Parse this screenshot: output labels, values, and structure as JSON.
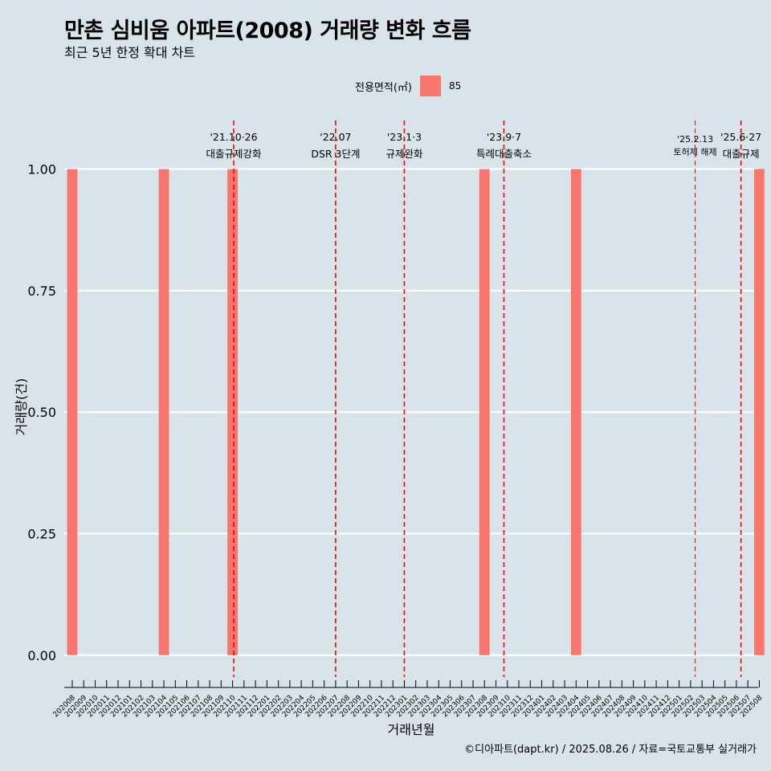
{
  "chart_data": {
    "type": "bar",
    "title": "만촌 심비움 아파트(2008) 거래량 변화 흐름",
    "subtitle": "최근 5년 한정 확대 차트",
    "xlabel": "거래년월",
    "ylabel": "거래량(건)",
    "ylim": [
      -0.045,
      1.1
    ],
    "yticks": [
      "0.00",
      "0.25",
      "0.50",
      "0.75",
      "1.00"
    ],
    "ytick_values": [
      0,
      0.25,
      0.5,
      0.75,
      1.0
    ],
    "legend": {
      "title": "전용면적(㎡)",
      "entries": [
        {
          "label": "85",
          "color": "#f8766d"
        }
      ]
    },
    "categories": [
      "202008",
      "202009",
      "202010",
      "202011",
      "202012",
      "202101",
      "202102",
      "202103",
      "202104",
      "202105",
      "202106",
      "202107",
      "202108",
      "202109",
      "202110",
      "202111",
      "202112",
      "202201",
      "202202",
      "202203",
      "202204",
      "202205",
      "202206",
      "202207",
      "202208",
      "202209",
      "202210",
      "202211",
      "202212",
      "202301",
      "202302",
      "202303",
      "202304",
      "202305",
      "202306",
      "202307",
      "202308",
      "202309",
      "202310",
      "202311",
      "202312",
      "202401",
      "202402",
      "202403",
      "202404",
      "202405",
      "202406",
      "202407",
      "202408",
      "202409",
      "202410",
      "202411",
      "202412",
      "202501",
      "202502",
      "202503",
      "202504",
      "202505",
      "202506",
      "202507",
      "202508"
    ],
    "series": [
      {
        "name": "85",
        "color": "#f8766d",
        "points": [
          {
            "x": "202008",
            "y": 1
          },
          {
            "x": "202104",
            "y": 1
          },
          {
            "x": "202110",
            "y": 1
          },
          {
            "x": "202308",
            "y": 1
          },
          {
            "x": "202404",
            "y": 1
          },
          {
            "x": "202508",
            "y": 1
          }
        ]
      }
    ],
    "annotations": [
      {
        "x": 14.1,
        "date": "'21.10·26",
        "label": "대출규제강화",
        "size": "normal"
      },
      {
        "x": 23,
        "date": "'22.07",
        "label": "DSR 3단계",
        "size": "normal"
      },
      {
        "x": 29,
        "date": "'23.1·3",
        "label": "규제완화",
        "size": "normal"
      },
      {
        "x": 37.7,
        "date": "'23.9·7",
        "label": "특례대출축소",
        "size": "normal"
      },
      {
        "x": 54.4,
        "date": "'25.2.13",
        "label": "토허제 해제",
        "size": "small"
      },
      {
        "x": 58.4,
        "date": "'25.6·27",
        "label": "대출규제",
        "size": "normal"
      }
    ]
  },
  "caption": "©디아파트(dapt.kr) / 2025.08.26 / 자료=국토교통부 실거래가"
}
